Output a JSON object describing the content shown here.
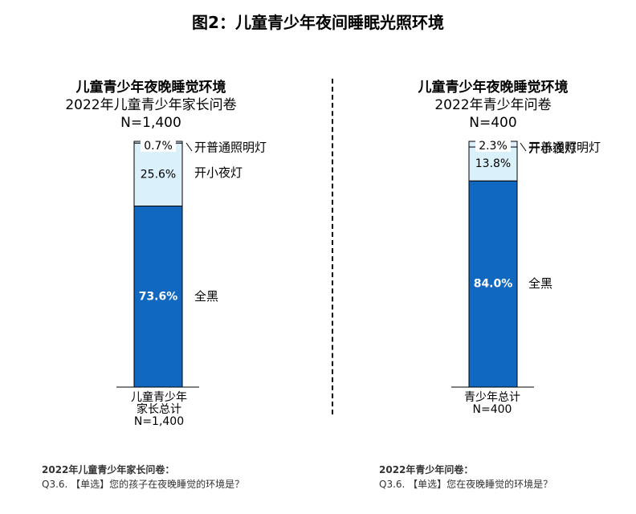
{
  "title": "图2：儿童青少年夜间睡眠光照环境",
  "left": {
    "heading": "儿童青少年夜晚睡觉环境",
    "subheading": "2022年儿童青少年家长问卷",
    "n": "N=1,400",
    "x_label_1": "儿童青少年",
    "x_label_2": "家长总计",
    "x_label_3": "N=1,400",
    "foot_title": "2022年儿童青少年家长问卷：",
    "foot_q": "Q3.6. 【单选】您的孩子在夜晚睡觉的环境是？"
  },
  "right": {
    "heading": "儿童青少年夜晚睡觉环境",
    "subheading": "2022年青少年问卷",
    "n": "N=400",
    "x_label_1": "青少年总计",
    "x_label_2": "N=400",
    "foot_title": "2022年青少年问卷：",
    "foot_q": "Q3.6. 【单选】您在夜晚睡觉的环境是？"
  },
  "colors": {
    "dark": "#1068c0",
    "light": "#daf0fb",
    "border": "#000000"
  },
  "chart_data": [
    {
      "type": "bar",
      "stacked": true,
      "categories": [
        "儿童青少年家长总计"
      ],
      "series": [
        {
          "name": "全黑",
          "values": [
            73.6
          ],
          "label": "73.6%"
        },
        {
          "name": "开小夜灯",
          "values": [
            25.6
          ],
          "label": "25.6%"
        },
        {
          "name": "开普通照明灯",
          "values": [
            0.7
          ],
          "label": "0.7%"
        }
      ],
      "ylim": [
        0,
        100
      ]
    },
    {
      "type": "bar",
      "stacked": true,
      "categories": [
        "青少年总计"
      ],
      "series": [
        {
          "name": "全黑",
          "values": [
            84.0
          ],
          "label": "84.0%"
        },
        {
          "name": "开小夜灯",
          "values": [
            13.8
          ],
          "label": "13.8%"
        },
        {
          "name": "开普通照明灯",
          "values": [
            2.3
          ],
          "label": "2.3%"
        }
      ],
      "ylim": [
        0,
        100
      ]
    }
  ]
}
